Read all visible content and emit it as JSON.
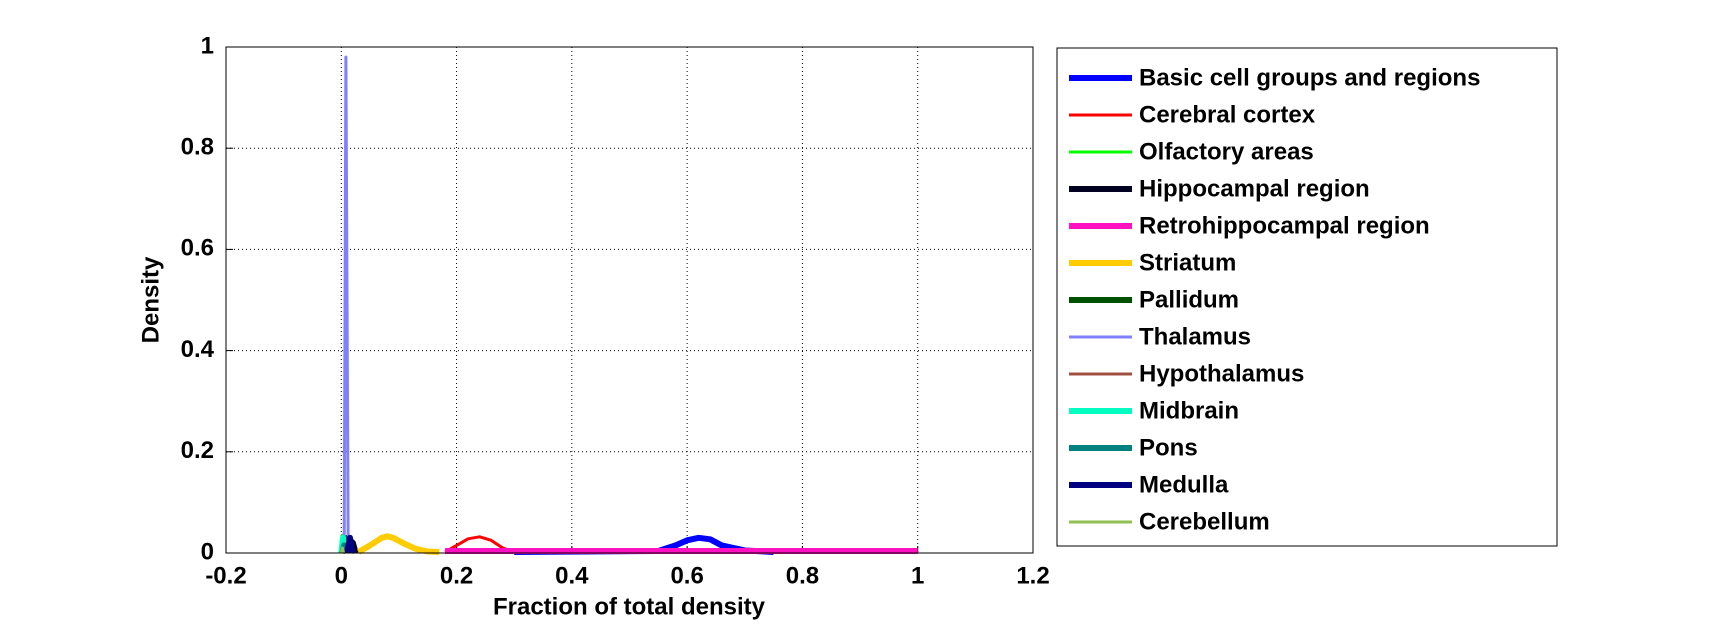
{
  "chart_data": {
    "type": "line",
    "xlabel": "Fraction of total density",
    "ylabel": "Density",
    "xlim": [
      -0.2,
      1.2
    ],
    "ylim": [
      0,
      1
    ],
    "xticks": [
      -0.2,
      0,
      0.2,
      0.4,
      0.6,
      0.8,
      1,
      1.2
    ],
    "yticks": [
      0,
      0.2,
      0.4,
      0.6,
      0.8,
      1
    ],
    "grid": true,
    "legend": "outside-right",
    "series": [
      {
        "name": "Basic cell groups and regions",
        "color": "#0000ff",
        "line_width": 6,
        "x": [
          0.3,
          0.55,
          0.58,
          0.6,
          0.62,
          0.64,
          0.66,
          0.7,
          0.75
        ],
        "values": [
          0.002,
          0.004,
          0.015,
          0.025,
          0.03,
          0.027,
          0.015,
          0.005,
          0.002
        ]
      },
      {
        "name": "Cerebral cortex",
        "color": "#ff0000",
        "line_width": 3,
        "x": [
          0.18,
          0.2,
          0.22,
          0.24,
          0.26,
          0.28,
          0.3
        ],
        "values": [
          0.002,
          0.015,
          0.028,
          0.032,
          0.025,
          0.01,
          0.002
        ]
      },
      {
        "name": "Olfactory areas",
        "color": "#00ff00",
        "line_width": 3,
        "x": [
          0,
          0.002,
          0.005,
          0.008
        ],
        "values": [
          0,
          0.035,
          0.03,
          0
        ]
      },
      {
        "name": "Hippocampal region",
        "color": "#000020",
        "line_width": 6,
        "x": [
          0.005,
          0.01,
          0.015,
          0.02,
          0.025
        ],
        "values": [
          0,
          0.03,
          0.025,
          0.02,
          0
        ]
      },
      {
        "name": "Retrohippocampal region",
        "color": "#ff10c0",
        "line_width": 6,
        "x": [
          0.18,
          0.3,
          0.5,
          0.75,
          1
        ],
        "values": [
          0.004,
          0.004,
          0.004,
          0.004,
          0.004
        ]
      },
      {
        "name": "Striatum",
        "color": "#ffcc00",
        "line_width": 6,
        "x": [
          0.03,
          0.05,
          0.07,
          0.08,
          0.09,
          0.11,
          0.13,
          0.15,
          0.17
        ],
        "values": [
          0.002,
          0.015,
          0.03,
          0.033,
          0.03,
          0.018,
          0.008,
          0.003,
          0.002
        ]
      },
      {
        "name": "Pallidum",
        "color": "#005000",
        "line_width": 6,
        "x": [
          0,
          0.005,
          0.01
        ],
        "values": [
          0,
          0.02,
          0
        ]
      },
      {
        "name": "Thalamus",
        "color": "#8080ff",
        "line_width": 3,
        "x": [
          0.005,
          0.008,
          0.01,
          0.012
        ],
        "values": [
          0,
          0.98,
          0.5,
          0
        ]
      },
      {
        "name": "Hypothalamus",
        "color": "#a05040",
        "line_width": 3,
        "x": [
          0.003,
          0.005,
          0.007
        ],
        "values": [
          0,
          0.01,
          0
        ]
      },
      {
        "name": "Midbrain",
        "color": "#00ffc0",
        "line_width": 6,
        "x": [
          0,
          0.003,
          0.006
        ],
        "values": [
          0,
          0.03,
          0
        ]
      },
      {
        "name": "Pons",
        "color": "#008080",
        "line_width": 6,
        "x": [
          0.002,
          0.005,
          0.008
        ],
        "values": [
          0,
          0.015,
          0
        ]
      },
      {
        "name": "Medulla",
        "color": "#000080",
        "line_width": 6,
        "x": [
          0.01,
          0.015,
          0.02
        ],
        "values": [
          0,
          0.03,
          0
        ]
      },
      {
        "name": "Cerebellum",
        "color": "#90c050",
        "line_width": 3,
        "x": [
          0,
          0.002,
          0.004
        ],
        "values": [
          0,
          0.01,
          0
        ]
      }
    ]
  }
}
